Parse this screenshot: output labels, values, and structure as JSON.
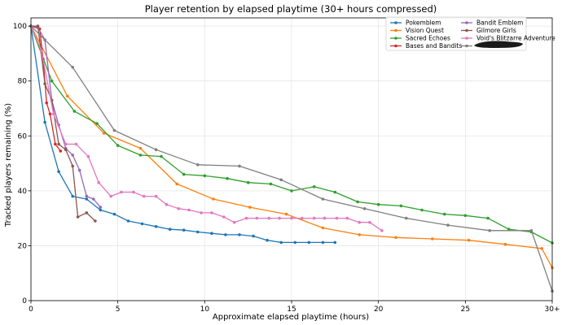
{
  "chart_data": {
    "type": "line",
    "title": "Player retention by elapsed playtime (30+ hours compressed)",
    "xlabel": "Approximate elapsed playtime (hours)",
    "ylabel": "Tracked players remaining (%)",
    "xlim": [
      0,
      30
    ],
    "ylim": [
      0,
      103
    ],
    "xticks": [
      0,
      5,
      10,
      15,
      20,
      25,
      30
    ],
    "xtick_labels": [
      "0",
      "5",
      "10",
      "15",
      "20",
      "25",
      "30+"
    ],
    "yticks": [
      0,
      20,
      40,
      60,
      80,
      100
    ],
    "grid": true,
    "legend_position": "top-right",
    "series": [
      {
        "name": "Pokemblem",
        "color": "#1f77b4",
        "x": [
          0,
          0.8,
          1.6,
          2.4,
          3.2,
          4.0,
          4.8,
          5.6,
          6.4,
          7.2,
          8.0,
          8.8,
          9.6,
          10.4,
          11.2,
          12.0,
          12.8,
          13.6,
          14.4,
          15.2,
          16.0,
          16.8,
          17.5
        ],
        "y": [
          100,
          65,
          47,
          38,
          37,
          33,
          31.5,
          29,
          28,
          27,
          26,
          25.7,
          25,
          24.5,
          24,
          24,
          23.5,
          22,
          21.2,
          21.2,
          21.2,
          21.2,
          21.2
        ]
      },
      {
        "name": "Vision Quest",
        "color": "#ff7f0e",
        "x": [
          0,
          2.1,
          4.2,
          6.3,
          8.4,
          10.5,
          12.6,
          14.7,
          16.8,
          18.9,
          21.0,
          23.1,
          25.2,
          27.3,
          29.4,
          30
        ],
        "y": [
          100,
          74.5,
          61,
          55.5,
          42.5,
          37,
          34,
          31.5,
          26.5,
          24,
          23,
          22.5,
          22,
          20.5,
          19,
          12
        ]
      },
      {
        "name": "Sacred Echoes",
        "color": "#2ca02c",
        "x": [
          0,
          1.2,
          2.5,
          3.8,
          5.0,
          6.3,
          7.5,
          8.8,
          10.0,
          11.3,
          12.5,
          13.8,
          15.0,
          16.3,
          17.5,
          18.8,
          20.0,
          21.3,
          22.5,
          23.8,
          25.0,
          26.3,
          27.5,
          28.8,
          30
        ],
        "y": [
          100,
          80,
          69,
          64.5,
          56.5,
          53,
          52.5,
          46,
          45.5,
          44.5,
          43,
          42.5,
          40,
          41.5,
          39.5,
          36,
          35,
          34.5,
          33,
          31.5,
          31,
          30,
          26,
          25,
          21
        ]
      },
      {
        "name": "Bases and Bandits",
        "color": "#d62728",
        "x": [
          0,
          0.5,
          0.7,
          0.9,
          1.1,
          1.4,
          1.7
        ],
        "y": [
          100,
          99,
          88,
          72,
          68,
          57,
          54.5
        ]
      },
      {
        "name": "Bandit Emblem",
        "color": "#9467bd",
        "x": [
          0,
          0.4,
          0.8,
          1.2,
          1.6,
          2.0,
          2.4,
          2.8,
          3.2,
          3.6,
          4.0
        ],
        "y": [
          100,
          99.5,
          95,
          73,
          64,
          55.5,
          53,
          47.5,
          38,
          37,
          34
        ]
      },
      {
        "name": "Gilmore Girls",
        "color": "#8c564b",
        "x": [
          0,
          0.4,
          0.8,
          1.2,
          1.6,
          2.0,
          2.4,
          2.7,
          3.2,
          3.7
        ],
        "y": [
          100,
          100,
          79,
          73,
          57,
          55,
          49,
          30.5,
          32,
          29
        ]
      },
      {
        "name": "Void's Blitzarre Adventure",
        "color": "#e377c2",
        "x": [
          0,
          0.6,
          1.3,
          2.0,
          2.6,
          3.3,
          3.9,
          4.6,
          5.2,
          5.9,
          6.5,
          7.2,
          7.8,
          8.5,
          9.1,
          9.8,
          10.4,
          11.1,
          11.7,
          12.4,
          13.0,
          13.7,
          14.3,
          15.0,
          15.6,
          16.3,
          16.9,
          17.6,
          18.2,
          18.9,
          19.5,
          20.2
        ],
        "y": [
          100,
          91,
          68,
          57,
          57,
          52.5,
          43,
          38,
          39.5,
          39.5,
          38,
          38,
          35,
          33.5,
          33,
          32,
          32,
          30.5,
          28.5,
          30,
          30,
          30,
          30,
          30,
          30,
          30,
          30,
          30,
          30,
          28.5,
          28.5,
          25.5
        ]
      },
      {
        "name": "",
        "color": "#7f7f7f",
        "x": [
          0,
          2.4,
          4.8,
          7.2,
          9.6,
          12.0,
          14.4,
          16.8,
          19.2,
          21.6,
          24.0,
          26.4,
          28.8,
          30
        ],
        "y": [
          100,
          85,
          62,
          55,
          49.5,
          49,
          44,
          37,
          33.5,
          30,
          27.5,
          25.5,
          25.5,
          3.5
        ]
      }
    ]
  }
}
